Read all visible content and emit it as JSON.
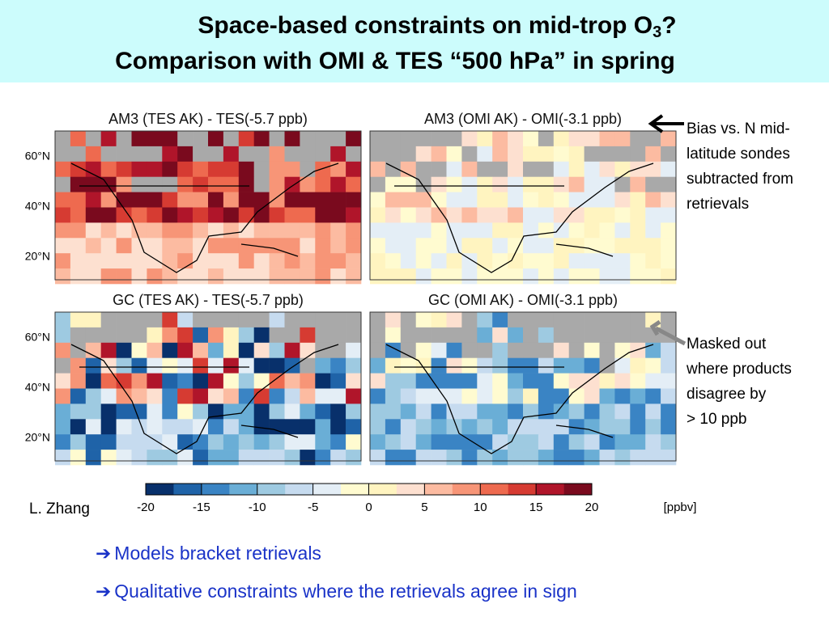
{
  "header": {
    "title_line1": {
      "text": "Space-based constraints on mid-trop O",
      "sub": "3",
      "after": "?"
    },
    "title_line2": "Comparison with OMI & TES “500 hPa” in spring"
  },
  "panels": [
    {
      "title": "AM3 (TES AK) - TES(-5.7 ppb)"
    },
    {
      "title": "AM3 (OMI AK) - OMI(-3.1 ppb)"
    },
    {
      "title": "GC (TES AK) - TES(-5.7 ppb)"
    },
    {
      "title": "GC (OMI AK) - OMI(-3.1 ppb)"
    }
  ],
  "latitude_labels": [
    "60°N",
    "40°N",
    "20°N"
  ],
  "annotations": [
    {
      "lines": [
        "Bias vs. N mid-",
        "latitude sondes",
        "subtracted from",
        "retrievals"
      ]
    },
    {
      "lines": [
        "Masked out",
        "where products",
        "disagree by",
        "> 10 ppb"
      ]
    }
  ],
  "colorbar": {
    "ticks": [
      -20,
      -15,
      -10,
      -5,
      0,
      5,
      10,
      15,
      20
    ],
    "unit": "[ppbv]",
    "colors": [
      "#08306b",
      "#1f63a8",
      "#3a84c4",
      "#6aaed6",
      "#9ecae1",
      "#c6dbef",
      "#e4eef6",
      "#fffbd0",
      "#fff4c0",
      "#fde0d0",
      "#fcbba1",
      "#f79577",
      "#ee6a4f",
      "#d63b32",
      "#b0152a",
      "#7a0a1e"
    ]
  },
  "author": "L. Zhang",
  "bullets": [
    "Models bracket retrievals",
    "Qualitative constraints where the retrievals agree in sign"
  ]
}
